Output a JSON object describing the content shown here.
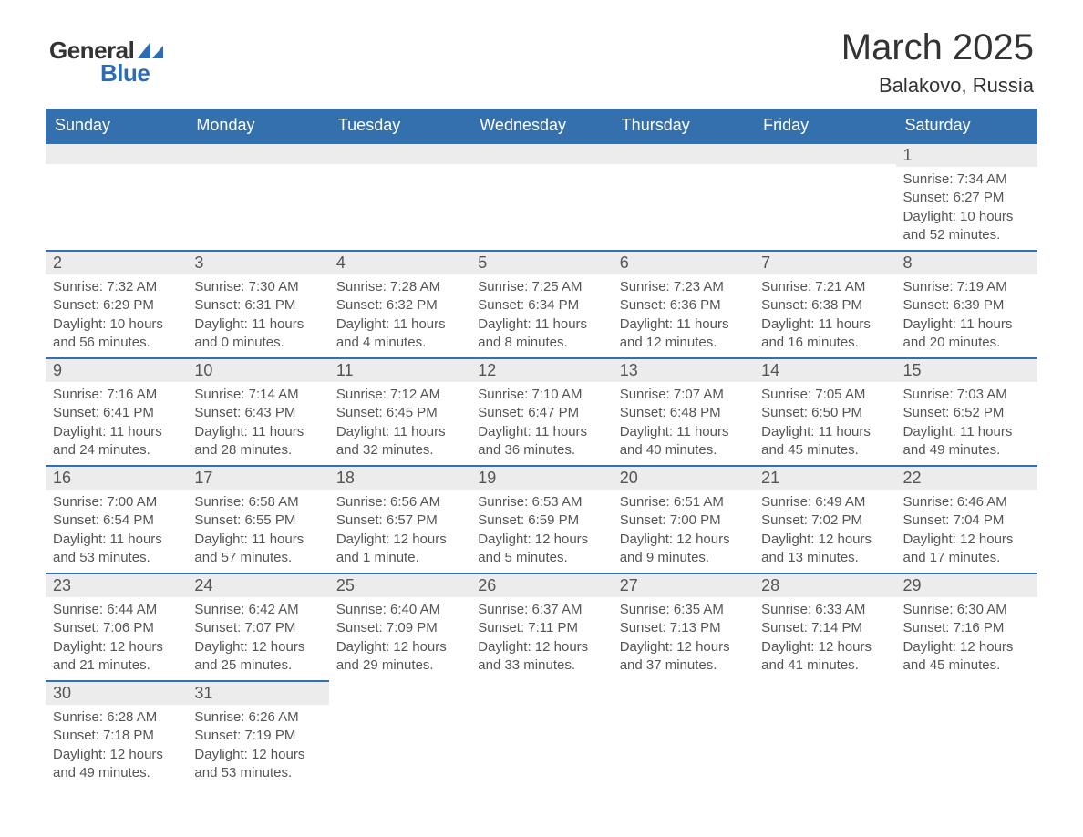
{
  "logo": {
    "text1": "General",
    "text2": "Blue"
  },
  "title": {
    "month": "March 2025",
    "location": "Balakovo, Russia"
  },
  "colors": {
    "header_bg": "#3470ae",
    "header_text": "#ffffff",
    "daynum_bg": "#ececec",
    "rule": "#3470ae",
    "body_text": "#555555",
    "title_text": "#333333",
    "logo_accent": "#2a6db5"
  },
  "typography": {
    "title_fontsize_pt": 30,
    "location_fontsize_pt": 16,
    "dayheader_fontsize_pt": 13,
    "daynum_fontsize_pt": 13,
    "cell_fontsize_pt": 11
  },
  "calendar": {
    "day_headers": [
      "Sunday",
      "Monday",
      "Tuesday",
      "Wednesday",
      "Thursday",
      "Friday",
      "Saturday"
    ],
    "weeks": [
      [
        null,
        null,
        null,
        null,
        null,
        null,
        {
          "n": "1",
          "sr": "7:34 AM",
          "ss": "6:27 PM",
          "dl": "10 hours and 52 minutes."
        }
      ],
      [
        {
          "n": "2",
          "sr": "7:32 AM",
          "ss": "6:29 PM",
          "dl": "10 hours and 56 minutes."
        },
        {
          "n": "3",
          "sr": "7:30 AM",
          "ss": "6:31 PM",
          "dl": "11 hours and 0 minutes."
        },
        {
          "n": "4",
          "sr": "7:28 AM",
          "ss": "6:32 PM",
          "dl": "11 hours and 4 minutes."
        },
        {
          "n": "5",
          "sr": "7:25 AM",
          "ss": "6:34 PM",
          "dl": "11 hours and 8 minutes."
        },
        {
          "n": "6",
          "sr": "7:23 AM",
          "ss": "6:36 PM",
          "dl": "11 hours and 12 minutes."
        },
        {
          "n": "7",
          "sr": "7:21 AM",
          "ss": "6:38 PM",
          "dl": "11 hours and 16 minutes."
        },
        {
          "n": "8",
          "sr": "7:19 AM",
          "ss": "6:39 PM",
          "dl": "11 hours and 20 minutes."
        }
      ],
      [
        {
          "n": "9",
          "sr": "7:16 AM",
          "ss": "6:41 PM",
          "dl": "11 hours and 24 minutes."
        },
        {
          "n": "10",
          "sr": "7:14 AM",
          "ss": "6:43 PM",
          "dl": "11 hours and 28 minutes."
        },
        {
          "n": "11",
          "sr": "7:12 AM",
          "ss": "6:45 PM",
          "dl": "11 hours and 32 minutes."
        },
        {
          "n": "12",
          "sr": "7:10 AM",
          "ss": "6:47 PM",
          "dl": "11 hours and 36 minutes."
        },
        {
          "n": "13",
          "sr": "7:07 AM",
          "ss": "6:48 PM",
          "dl": "11 hours and 40 minutes."
        },
        {
          "n": "14",
          "sr": "7:05 AM",
          "ss": "6:50 PM",
          "dl": "11 hours and 45 minutes."
        },
        {
          "n": "15",
          "sr": "7:03 AM",
          "ss": "6:52 PM",
          "dl": "11 hours and 49 minutes."
        }
      ],
      [
        {
          "n": "16",
          "sr": "7:00 AM",
          "ss": "6:54 PM",
          "dl": "11 hours and 53 minutes."
        },
        {
          "n": "17",
          "sr": "6:58 AM",
          "ss": "6:55 PM",
          "dl": "11 hours and 57 minutes."
        },
        {
          "n": "18",
          "sr": "6:56 AM",
          "ss": "6:57 PM",
          "dl": "12 hours and 1 minute."
        },
        {
          "n": "19",
          "sr": "6:53 AM",
          "ss": "6:59 PM",
          "dl": "12 hours and 5 minutes."
        },
        {
          "n": "20",
          "sr": "6:51 AM",
          "ss": "7:00 PM",
          "dl": "12 hours and 9 minutes."
        },
        {
          "n": "21",
          "sr": "6:49 AM",
          "ss": "7:02 PM",
          "dl": "12 hours and 13 minutes."
        },
        {
          "n": "22",
          "sr": "6:46 AM",
          "ss": "7:04 PM",
          "dl": "12 hours and 17 minutes."
        }
      ],
      [
        {
          "n": "23",
          "sr": "6:44 AM",
          "ss": "7:06 PM",
          "dl": "12 hours and 21 minutes."
        },
        {
          "n": "24",
          "sr": "6:42 AM",
          "ss": "7:07 PM",
          "dl": "12 hours and 25 minutes."
        },
        {
          "n": "25",
          "sr": "6:40 AM",
          "ss": "7:09 PM",
          "dl": "12 hours and 29 minutes."
        },
        {
          "n": "26",
          "sr": "6:37 AM",
          "ss": "7:11 PM",
          "dl": "12 hours and 33 minutes."
        },
        {
          "n": "27",
          "sr": "6:35 AM",
          "ss": "7:13 PM",
          "dl": "12 hours and 37 minutes."
        },
        {
          "n": "28",
          "sr": "6:33 AM",
          "ss": "7:14 PM",
          "dl": "12 hours and 41 minutes."
        },
        {
          "n": "29",
          "sr": "6:30 AM",
          "ss": "7:16 PM",
          "dl": "12 hours and 45 minutes."
        }
      ],
      [
        {
          "n": "30",
          "sr": "6:28 AM",
          "ss": "7:18 PM",
          "dl": "12 hours and 49 minutes."
        },
        {
          "n": "31",
          "sr": "6:26 AM",
          "ss": "7:19 PM",
          "dl": "12 hours and 53 minutes."
        },
        null,
        null,
        null,
        null,
        null
      ]
    ],
    "labels": {
      "sunrise": "Sunrise: ",
      "sunset": "Sunset: ",
      "daylight": "Daylight: "
    }
  }
}
